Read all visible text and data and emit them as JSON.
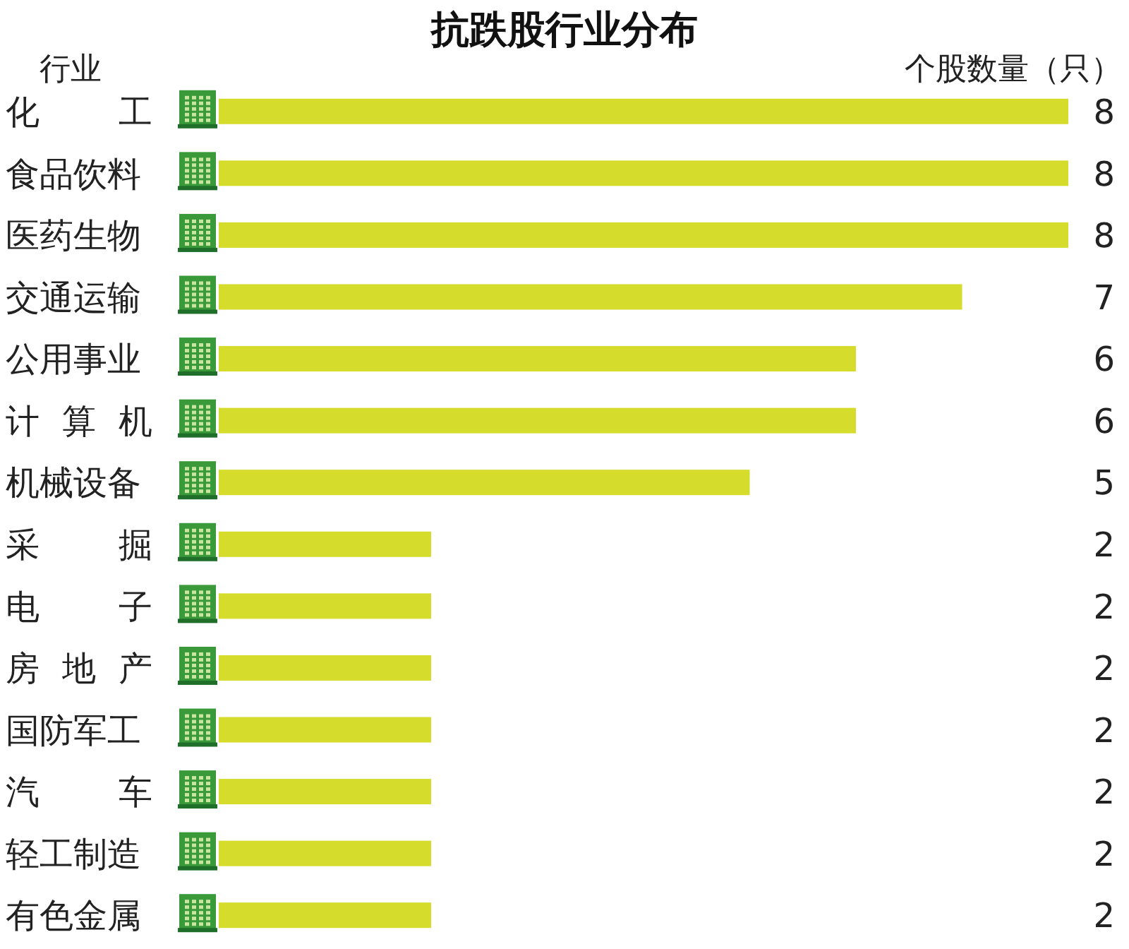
{
  "chart_data": {
    "type": "bar",
    "orientation": "horizontal",
    "title": "抗跌股行业分布",
    "ylabel": "行业",
    "xlabel": "个股数量（只）",
    "categories": [
      "化工",
      "食品饮料",
      "医药生物",
      "交通运输",
      "公用事业",
      "计算机",
      "机械设备",
      "采掘",
      "电子",
      "房地产",
      "国防军工",
      "汽车",
      "轻工制造",
      "有色金属"
    ],
    "values": [
      8,
      8,
      8,
      7,
      6,
      6,
      5,
      2,
      2,
      2,
      2,
      2,
      2,
      2
    ],
    "color": "#d5dc2b",
    "xlim": [
      0,
      8
    ],
    "data_labels": true,
    "tick_labels": "y"
  }
}
